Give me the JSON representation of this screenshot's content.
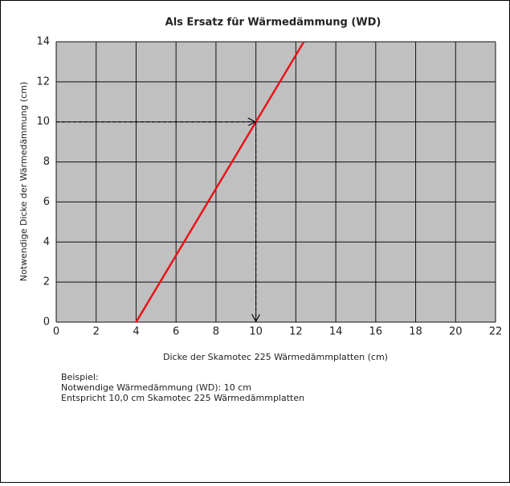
{
  "chart_data": {
    "type": "line",
    "title": "Als Ersatz für Wärmedämmung (WD)",
    "xlabel": "Dicke der Skamotec 225 Wärmedämmplatten (cm)",
    "ylabel": "Notwendige Dicke der Wärmedämmung (cm)",
    "x": [
      4,
      10,
      12.4
    ],
    "series": [
      {
        "color": "#e8141a",
        "values": [
          0,
          10,
          14
        ]
      }
    ],
    "xlim": [
      0,
      22
    ],
    "xticks": [
      0,
      2,
      4,
      6,
      8,
      10,
      12,
      14,
      16,
      18,
      20,
      22
    ],
    "ylim": [
      0,
      14
    ],
    "yticks": [
      0,
      2,
      4,
      6,
      8,
      10,
      12,
      14
    ],
    "grid": true,
    "example": {
      "x": 10,
      "y": 10
    },
    "notes": [
      "Beispiel:",
      "Notwendige Wärmedämmung (WD): 10 cm",
      "Entspricht 10,0 cm Skamotec 225 Wärmedämmplatten"
    ]
  }
}
